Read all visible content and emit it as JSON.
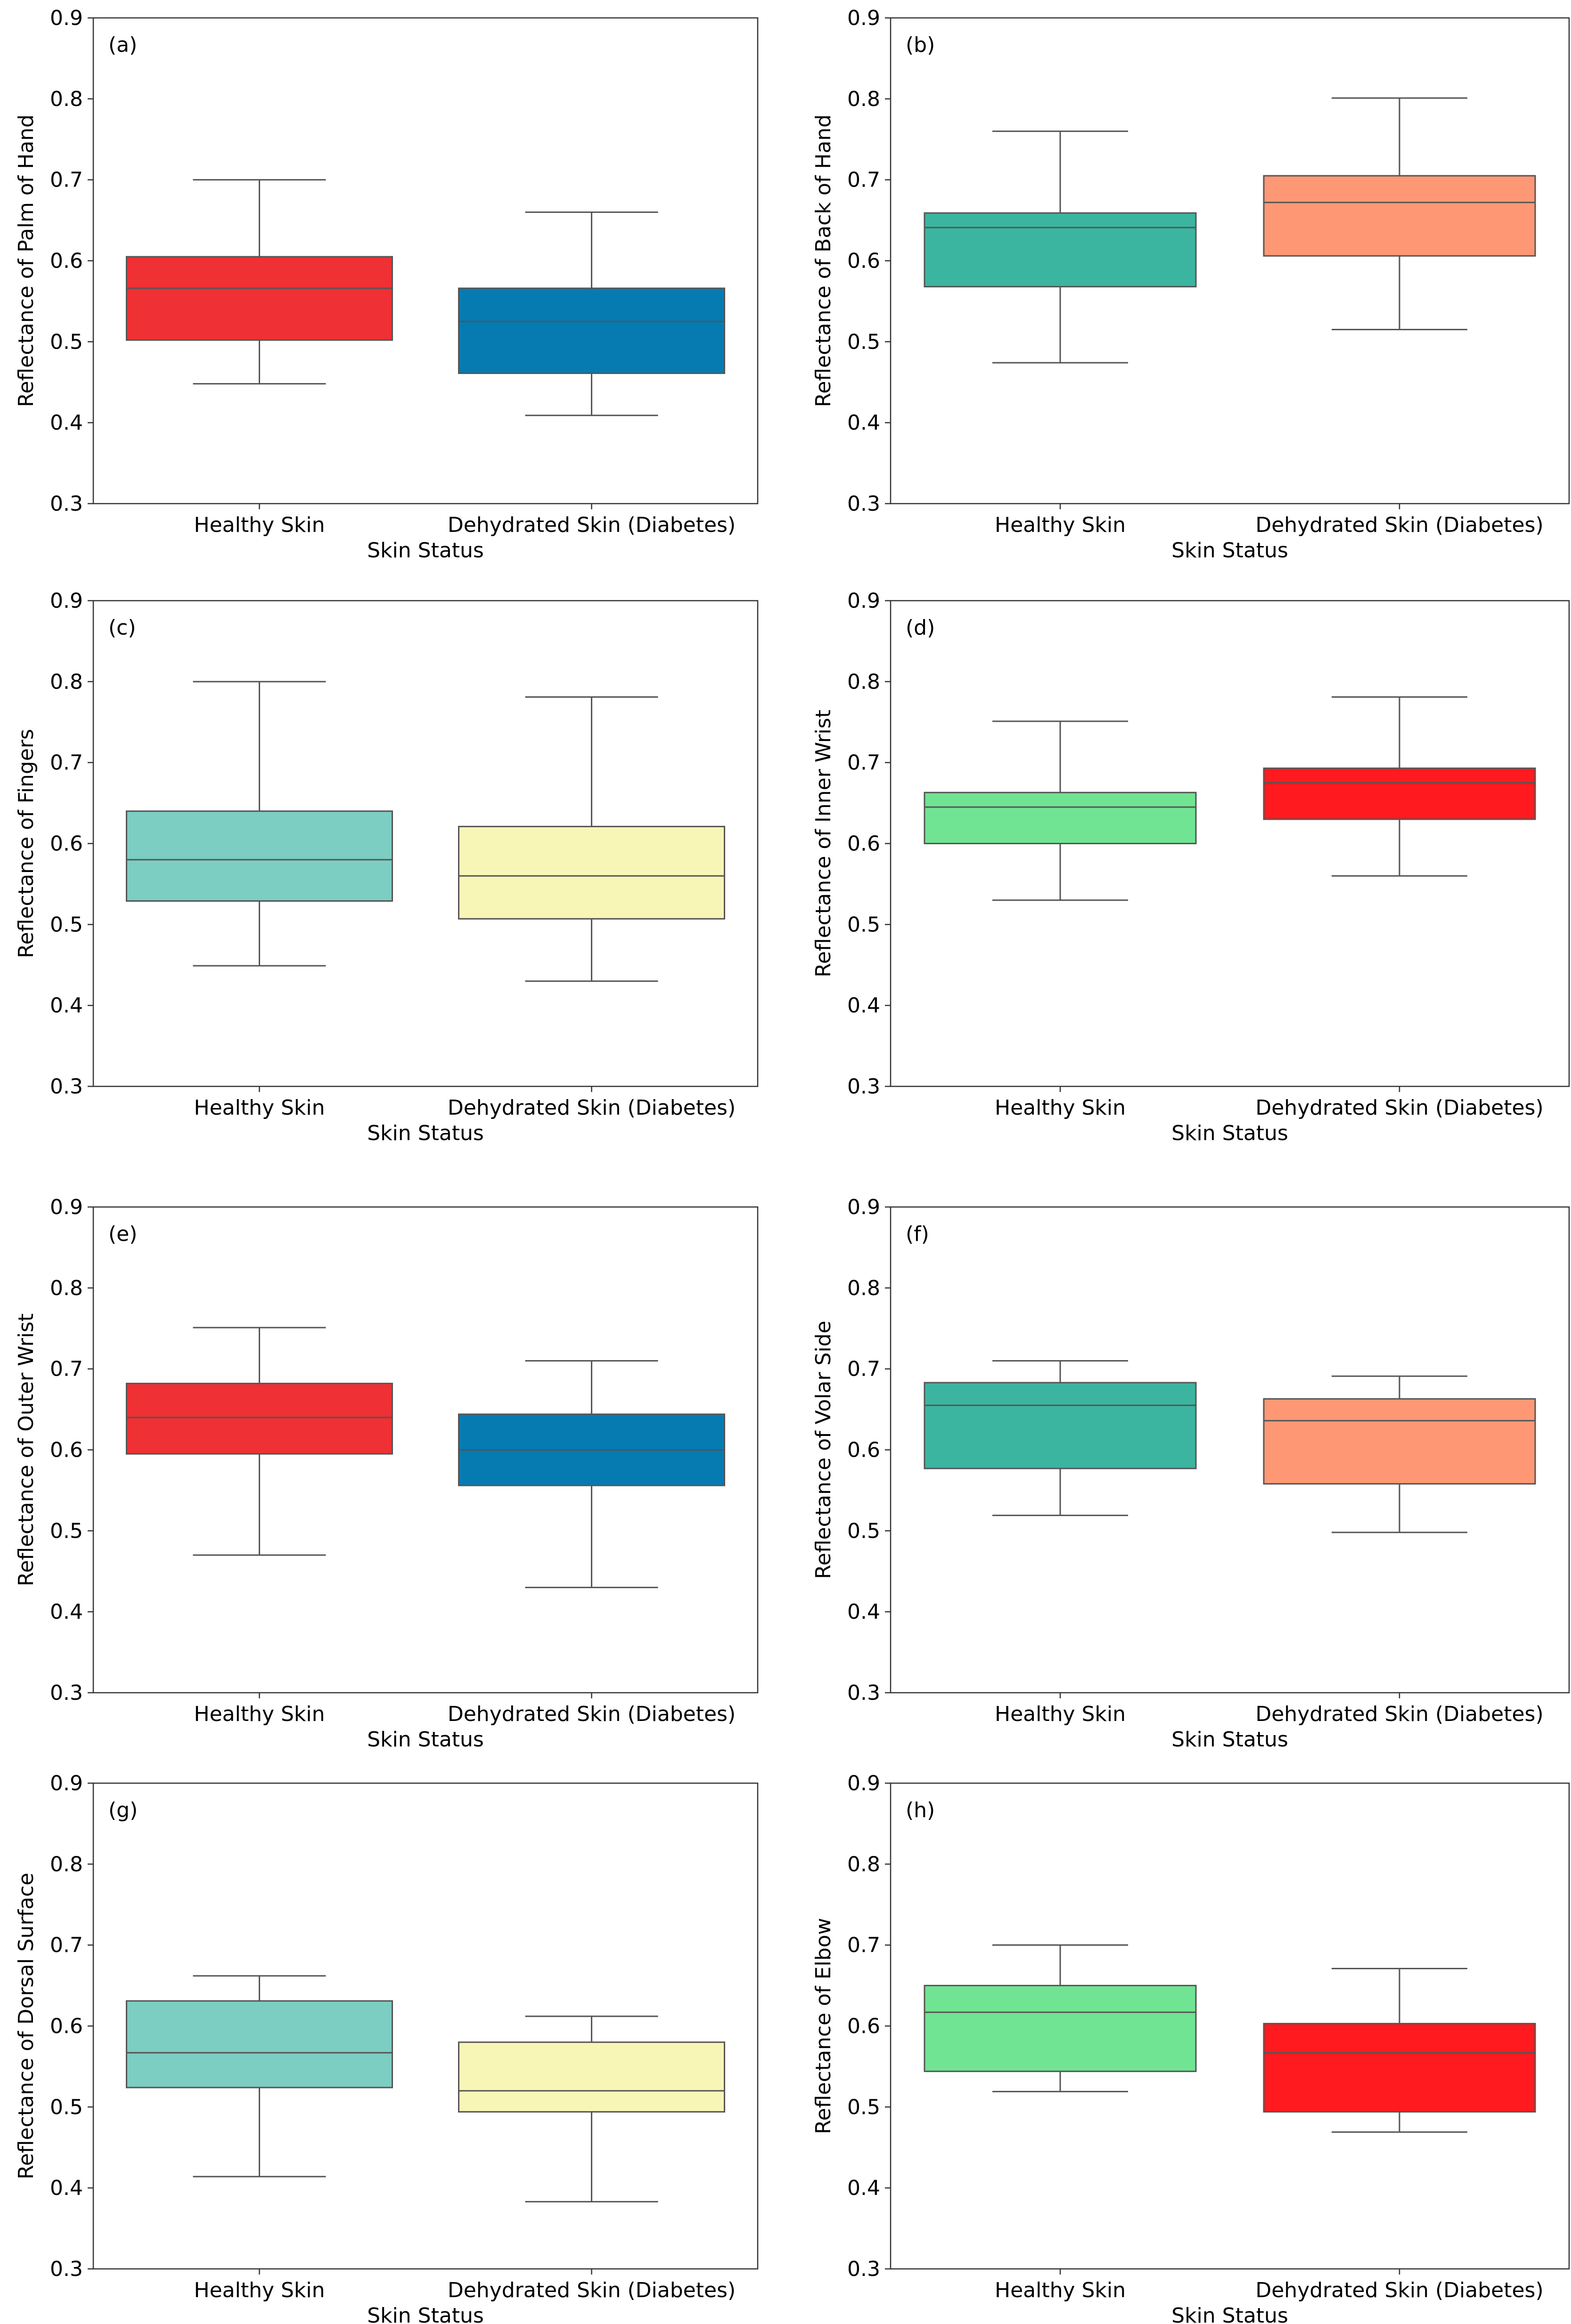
{
  "chart_data": [
    {
      "type": "box",
      "panel_label": "(a)",
      "xlabel": "Skin Status",
      "ylabel": "Reflectance of Palm of Hand",
      "ylim": [
        0.3,
        0.9
      ],
      "yticks": [
        "0.3",
        "0.4",
        "0.5",
        "0.6",
        "0.7",
        "0.8",
        "0.9"
      ],
      "categories": [
        "Healthy Skin",
        "Dehydrated Skin (Diabetes)"
      ],
      "colors": [
        "#ef3034",
        "#067bb1"
      ],
      "boxes": [
        {
          "whisker_low": 0.448,
          "q1": 0.502,
          "median": 0.566,
          "q3": 0.605,
          "whisker_high": 0.7
        },
        {
          "whisker_low": 0.409,
          "q1": 0.461,
          "median": 0.525,
          "q3": 0.566,
          "whisker_high": 0.66
        }
      ]
    },
    {
      "type": "box",
      "panel_label": "(b)",
      "xlabel": "Skin Status",
      "ylabel": "Reflectance of Back of Hand",
      "ylim": [
        0.3,
        0.9
      ],
      "yticks": [
        "0.3",
        "0.4",
        "0.5",
        "0.6",
        "0.7",
        "0.8",
        "0.9"
      ],
      "categories": [
        "Healthy Skin",
        "Dehydrated Skin (Diabetes)"
      ],
      "colors": [
        "#3bb5a0",
        "#fe9874"
      ],
      "boxes": [
        {
          "whisker_low": 0.474,
          "q1": 0.568,
          "median": 0.641,
          "q3": 0.659,
          "whisker_high": 0.76
        },
        {
          "whisker_low": 0.515,
          "q1": 0.606,
          "median": 0.672,
          "q3": 0.705,
          "whisker_high": 0.801
        }
      ]
    },
    {
      "type": "box",
      "panel_label": "(c)",
      "xlabel": "Skin Status",
      "ylabel": "Reflectance of Fingers",
      "ylim": [
        0.3,
        0.9
      ],
      "yticks": [
        "0.3",
        "0.4",
        "0.5",
        "0.6",
        "0.7",
        "0.8",
        "0.9"
      ],
      "categories": [
        "Healthy Skin",
        "Dehydrated Skin (Diabetes)"
      ],
      "colors": [
        "#7ccdc2",
        "#f7f6b6"
      ],
      "boxes": [
        {
          "whisker_low": 0.449,
          "q1": 0.529,
          "median": 0.58,
          "q3": 0.64,
          "whisker_high": 0.8
        },
        {
          "whisker_low": 0.43,
          "q1": 0.507,
          "median": 0.56,
          "q3": 0.621,
          "whisker_high": 0.781
        }
      ]
    },
    {
      "type": "box",
      "panel_label": "(d)",
      "xlabel": "Skin Status",
      "ylabel": "Reflectance of Inner Wrist",
      "ylim": [
        0.3,
        0.9
      ],
      "yticks": [
        "0.3",
        "0.4",
        "0.5",
        "0.6",
        "0.7",
        "0.8",
        "0.9"
      ],
      "categories": [
        "Healthy Skin",
        "Dehydrated Skin (Diabetes)"
      ],
      "colors": [
        "#70e492",
        "#fe1a1e"
      ],
      "boxes": [
        {
          "whisker_low": 0.53,
          "q1": 0.6,
          "median": 0.645,
          "q3": 0.663,
          "whisker_high": 0.751
        },
        {
          "whisker_low": 0.56,
          "q1": 0.63,
          "median": 0.675,
          "q3": 0.693,
          "whisker_high": 0.781
        }
      ]
    },
    {
      "type": "box",
      "panel_label": "(e)",
      "xlabel": "Skin Status",
      "ylabel": "Reflectance of Outer Wrist",
      "ylim": [
        0.3,
        0.9
      ],
      "yticks": [
        "0.3",
        "0.4",
        "0.5",
        "0.6",
        "0.7",
        "0.8",
        "0.9"
      ],
      "categories": [
        "Healthy Skin",
        "Dehydrated Skin (Diabetes)"
      ],
      "colors": [
        "#ef3034",
        "#067bb1"
      ],
      "boxes": [
        {
          "whisker_low": 0.47,
          "q1": 0.595,
          "median": 0.64,
          "q3": 0.682,
          "whisker_high": 0.751
        },
        {
          "whisker_low": 0.43,
          "q1": 0.556,
          "median": 0.6,
          "q3": 0.644,
          "whisker_high": 0.71
        }
      ]
    },
    {
      "type": "box",
      "panel_label": "(f)",
      "xlabel": "Skin Status",
      "ylabel": "Reflectance of Volar Side",
      "ylim": [
        0.3,
        0.9
      ],
      "yticks": [
        "0.3",
        "0.4",
        "0.5",
        "0.6",
        "0.7",
        "0.8",
        "0.9"
      ],
      "categories": [
        "Healthy Skin",
        "Dehydrated Skin (Diabetes)"
      ],
      "colors": [
        "#3bb5a0",
        "#fe9874"
      ],
      "boxes": [
        {
          "whisker_low": 0.519,
          "q1": 0.577,
          "median": 0.655,
          "q3": 0.683,
          "whisker_high": 0.71
        },
        {
          "whisker_low": 0.498,
          "q1": 0.558,
          "median": 0.636,
          "q3": 0.663,
          "whisker_high": 0.691
        }
      ]
    },
    {
      "type": "box",
      "panel_label": "(g)",
      "xlabel": "Skin Status",
      "ylabel": "Reflectance of Dorsal Surface",
      "ylim": [
        0.3,
        0.9
      ],
      "yticks": [
        "0.3",
        "0.4",
        "0.5",
        "0.6",
        "0.7",
        "0.8",
        "0.9"
      ],
      "categories": [
        "Healthy Skin",
        "Dehydrated Skin (Diabetes)"
      ],
      "colors": [
        "#7ccdc2",
        "#f7f6b6"
      ],
      "boxes": [
        {
          "whisker_low": 0.414,
          "q1": 0.524,
          "median": 0.567,
          "q3": 0.631,
          "whisker_high": 0.662
        },
        {
          "whisker_low": 0.383,
          "q1": 0.494,
          "median": 0.52,
          "q3": 0.58,
          "whisker_high": 0.612
        }
      ]
    },
    {
      "type": "box",
      "panel_label": "(h)",
      "xlabel": "Skin Status",
      "ylabel": "Reflectance of Elbow",
      "ylim": [
        0.3,
        0.9
      ],
      "yticks": [
        "0.3",
        "0.4",
        "0.5",
        "0.6",
        "0.7",
        "0.8",
        "0.9"
      ],
      "categories": [
        "Healthy Skin",
        "Dehydrated Skin (Diabetes)"
      ],
      "colors": [
        "#70e492",
        "#fe1a1e"
      ],
      "boxes": [
        {
          "whisker_low": 0.519,
          "q1": 0.544,
          "median": 0.617,
          "q3": 0.65,
          "whisker_high": 0.7
        },
        {
          "whisker_low": 0.469,
          "q1": 0.494,
          "median": 0.567,
          "q3": 0.603,
          "whisker_high": 0.671
        }
      ]
    }
  ]
}
